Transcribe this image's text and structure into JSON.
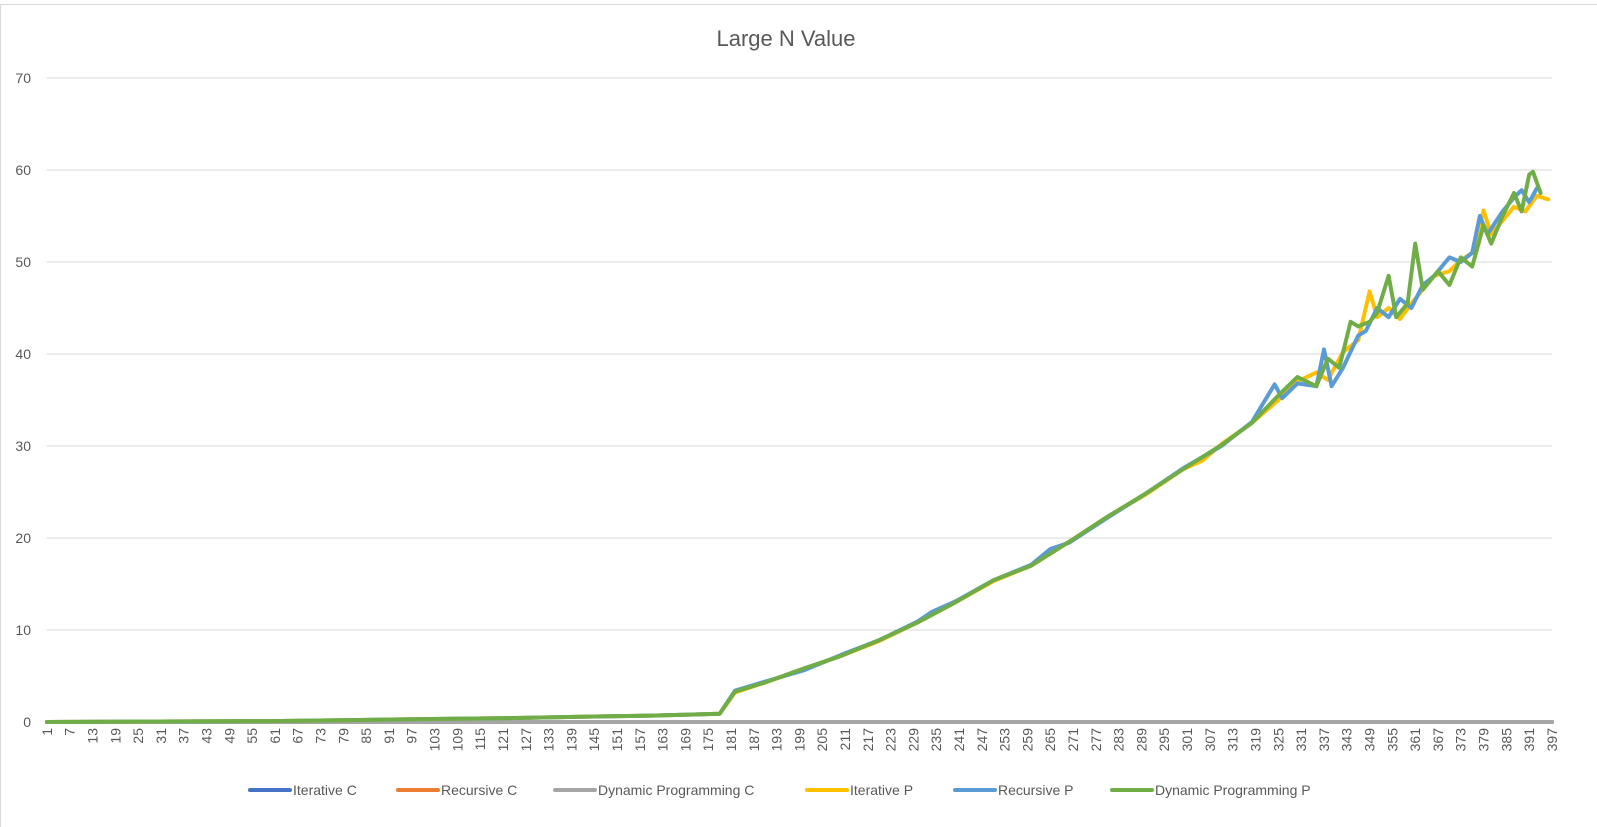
{
  "chart_data": {
    "type": "line",
    "title": "Large N Value",
    "xlabel": "",
    "ylabel": "",
    "x_range": [
      1,
      397
    ],
    "x_tick_labels": [
      "1",
      "7",
      "13",
      "19",
      "25",
      "31",
      "37",
      "43",
      "49",
      "55",
      "61",
      "67",
      "73",
      "79",
      "85",
      "91",
      "97",
      "103",
      "109",
      "115",
      "121",
      "127",
      "133",
      "139",
      "145",
      "151",
      "157",
      "163",
      "169",
      "175",
      "181",
      "187",
      "193",
      "199",
      "205",
      "211",
      "217",
      "223",
      "229",
      "235",
      "241",
      "247",
      "253",
      "259",
      "265",
      "271",
      "277",
      "283",
      "289",
      "295",
      "301",
      "307",
      "313",
      "319",
      "325",
      "331",
      "337",
      "343",
      "349",
      "355",
      "361",
      "367",
      "373",
      "379",
      "385",
      "391",
      "397"
    ],
    "ylim": [
      0,
      70
    ],
    "y_ticks": [
      0,
      10,
      20,
      30,
      40,
      50,
      60,
      70
    ],
    "grid": true,
    "legend_position": "bottom",
    "series": [
      {
        "name": "Iterative C",
        "color": "#4472C4",
        "points": [
          [
            1,
            0
          ],
          [
            397,
            0
          ]
        ]
      },
      {
        "name": "Recursive C",
        "color": "#ED7D31",
        "points": [
          [
            1,
            0
          ],
          [
            397,
            0
          ]
        ]
      },
      {
        "name": "Dynamic Programming C",
        "color": "#A5A5A5",
        "points": [
          [
            1,
            0
          ],
          [
            397,
            0
          ]
        ]
      },
      {
        "name": "Iterative P",
        "color": "#FFC000",
        "points": [
          [
            1,
            0
          ],
          [
            60,
            0.1
          ],
          [
            88,
            0.25
          ],
          [
            108,
            0.35
          ],
          [
            126,
            0.45
          ],
          [
            145,
            0.6
          ],
          [
            160,
            0.7
          ],
          [
            170,
            0.8
          ],
          [
            178,
            0.9
          ],
          [
            182,
            3.2
          ],
          [
            190,
            4.3
          ],
          [
            200,
            5.7
          ],
          [
            210,
            7.2
          ],
          [
            220,
            8.8
          ],
          [
            230,
            10.8
          ],
          [
            240,
            13.0
          ],
          [
            250,
            15.3
          ],
          [
            260,
            17.0
          ],
          [
            270,
            19.6
          ],
          [
            280,
            22.3
          ],
          [
            290,
            24.7
          ],
          [
            300,
            27.5
          ],
          [
            305,
            28.4
          ],
          [
            310,
            30.2
          ],
          [
            318,
            32.5
          ],
          [
            325,
            35.0
          ],
          [
            330,
            37.0
          ],
          [
            335,
            38.0
          ],
          [
            338,
            37.2
          ],
          [
            342,
            40.2
          ],
          [
            346,
            41.5
          ],
          [
            349,
            46.8
          ],
          [
            351,
            44.0
          ],
          [
            354,
            45.0
          ],
          [
            357,
            43.8
          ],
          [
            360,
            45.5
          ],
          [
            363,
            47.0
          ],
          [
            366,
            48.5
          ],
          [
            370,
            49.0
          ],
          [
            373,
            50.2
          ],
          [
            376,
            51.0
          ],
          [
            379,
            55.6
          ],
          [
            381,
            53.0
          ],
          [
            384,
            54.5
          ],
          [
            387,
            56.0
          ],
          [
            390,
            55.5
          ],
          [
            393,
            57.2
          ],
          [
            396,
            56.8
          ]
        ]
      },
      {
        "name": "Recursive P",
        "color": "#5B9BD5",
        "points": [
          [
            1,
            0
          ],
          [
            60,
            0.1
          ],
          [
            88,
            0.25
          ],
          [
            108,
            0.35
          ],
          [
            126,
            0.45
          ],
          [
            145,
            0.6
          ],
          [
            160,
            0.7
          ],
          [
            170,
            0.8
          ],
          [
            178,
            0.9
          ],
          [
            182,
            3.4
          ],
          [
            190,
            4.4
          ],
          [
            200,
            5.6
          ],
          [
            210,
            7.3
          ],
          [
            220,
            8.9
          ],
          [
            230,
            10.9
          ],
          [
            234,
            12.0
          ],
          [
            240,
            13.1
          ],
          [
            250,
            15.4
          ],
          [
            260,
            17.1
          ],
          [
            265,
            18.8
          ],
          [
            270,
            19.5
          ],
          [
            280,
            22.2
          ],
          [
            290,
            24.8
          ],
          [
            300,
            27.6
          ],
          [
            310,
            30.0
          ],
          [
            318,
            32.6
          ],
          [
            324,
            36.7
          ],
          [
            326,
            35.2
          ],
          [
            330,
            36.8
          ],
          [
            335,
            36.5
          ],
          [
            337,
            40.5
          ],
          [
            339,
            36.5
          ],
          [
            342,
            38.5
          ],
          [
            346,
            42.0
          ],
          [
            348,
            42.5
          ],
          [
            351,
            45.0
          ],
          [
            354,
            44.0
          ],
          [
            357,
            46.0
          ],
          [
            360,
            45.0
          ],
          [
            363,
            47.5
          ],
          [
            366,
            48.5
          ],
          [
            370,
            50.5
          ],
          [
            373,
            50.0
          ],
          [
            376,
            51.0
          ],
          [
            378,
            55.0
          ],
          [
            380,
            53.0
          ],
          [
            384,
            55.5
          ],
          [
            387,
            57.0
          ],
          [
            389,
            57.8
          ],
          [
            391,
            56.5
          ],
          [
            393,
            58.0
          ]
        ]
      },
      {
        "name": "Dynamic Programming P",
        "color": "#70AD47",
        "points": [
          [
            1,
            0
          ],
          [
            60,
            0.1
          ],
          [
            88,
            0.25
          ],
          [
            108,
            0.35
          ],
          [
            126,
            0.45
          ],
          [
            145,
            0.6
          ],
          [
            160,
            0.7
          ],
          [
            170,
            0.8
          ],
          [
            178,
            0.9
          ],
          [
            182,
            3.3
          ],
          [
            190,
            4.3
          ],
          [
            200,
            5.8
          ],
          [
            210,
            7.2
          ],
          [
            220,
            8.9
          ],
          [
            230,
            10.8
          ],
          [
            240,
            13.0
          ],
          [
            250,
            15.4
          ],
          [
            260,
            17.0
          ],
          [
            270,
            19.6
          ],
          [
            280,
            22.3
          ],
          [
            290,
            24.8
          ],
          [
            300,
            27.5
          ],
          [
            310,
            30.1
          ],
          [
            318,
            32.5
          ],
          [
            325,
            35.5
          ],
          [
            330,
            37.5
          ],
          [
            335,
            36.5
          ],
          [
            338,
            39.5
          ],
          [
            341,
            38.5
          ],
          [
            344,
            43.5
          ],
          [
            346,
            43.0
          ],
          [
            349,
            43.5
          ],
          [
            351,
            44.5
          ],
          [
            354,
            48.5
          ],
          [
            356,
            44.0
          ],
          [
            359,
            45.5
          ],
          [
            361,
            52.0
          ],
          [
            363,
            47.0
          ],
          [
            367,
            49.0
          ],
          [
            370,
            47.5
          ],
          [
            373,
            50.5
          ],
          [
            376,
            49.5
          ],
          [
            379,
            54.0
          ],
          [
            381,
            52.0
          ],
          [
            384,
            55.0
          ],
          [
            387,
            57.5
          ],
          [
            389,
            55.5
          ],
          [
            391,
            59.5
          ],
          [
            392,
            59.8
          ],
          [
            394,
            57.5
          ]
        ]
      }
    ]
  }
}
